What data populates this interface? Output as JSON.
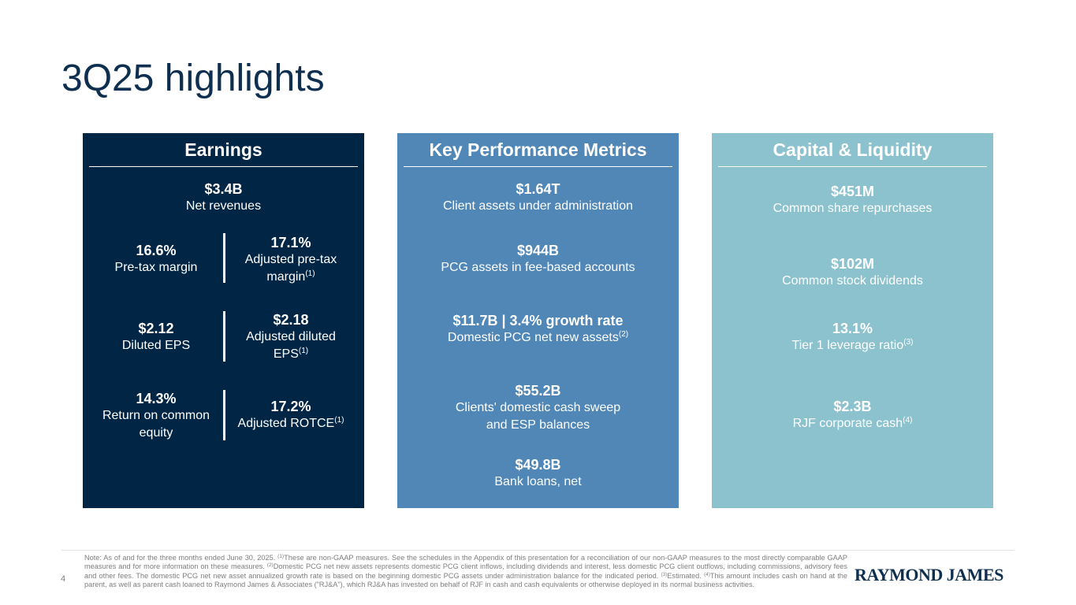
{
  "title": "3Q25 highlights",
  "colors": {
    "title": "#0e2f4f",
    "earnings_panel": "#012645",
    "kpm_panel": "#5087b6",
    "capital_panel": "#8bc2cd"
  },
  "earnings": {
    "heading": "Earnings",
    "net_revenues": {
      "value": "$3.4B",
      "label": "Net revenues"
    },
    "rows": [
      {
        "left": {
          "value": "16.6%",
          "label": "Pre-tax margin"
        },
        "right": {
          "value": "17.1%",
          "label": "Adjusted pre-tax margin",
          "sup": "(1)"
        }
      },
      {
        "left": {
          "value": "$2.12",
          "label": "Diluted EPS"
        },
        "right": {
          "value": "$2.18",
          "label": "Adjusted diluted EPS",
          "sup": "(1)"
        }
      },
      {
        "left": {
          "value": "14.3%",
          "label": "Return on common equity"
        },
        "right": {
          "value": "17.2%",
          "label": "Adjusted ROTCE",
          "sup": "(1)"
        }
      }
    ]
  },
  "kpm": {
    "heading": "Key Performance Metrics",
    "items": [
      {
        "value": "$1.64T",
        "label": "Client assets under administration",
        "sup": ""
      },
      {
        "value": "$944B",
        "label": "PCG assets in fee-based accounts",
        "sup": ""
      },
      {
        "value": "$11.7B | 3.4% growth rate",
        "label": "Domestic PCG net new assets",
        "sup": "(2)"
      },
      {
        "value": "$55.2B",
        "label_line1": "Clients' domestic cash sweep",
        "label_line2": "and ESP balances"
      },
      {
        "value": "$49.8B",
        "label": "Bank loans, net",
        "sup": ""
      }
    ]
  },
  "capital": {
    "heading": "Capital & Liquidity",
    "items": [
      {
        "value": "$451M",
        "label": "Common share repurchases",
        "sup": ""
      },
      {
        "value": "$102M",
        "label": "Common stock dividends",
        "sup": ""
      },
      {
        "value": "13.1%",
        "label": "Tier 1 leverage ratio",
        "sup": "(3)"
      },
      {
        "value": "$2.3B",
        "label": "RJF corporate cash",
        "sup": "(4)"
      }
    ]
  },
  "footer": {
    "page_number": "4",
    "note_parts": {
      "p0": "Note: As of and for the three months ended June 30, 2025. ",
      "s1": "(1)",
      "p1": "These are non-GAAP measures. See the schedules in the Appendix of this presentation for a reconciliation of our non-GAAP measures to the most directly comparable GAAP measures and for more information on these measures. ",
      "s2": "(2)",
      "p2": "Domestic PCG net new assets represents domestic PCG client inflows, including dividends and interest, less domestic PCG client outflows, including commissions, advisory fees and other fees. The domestic PCG net new asset annualized growth rate is based on the beginning domestic PCG assets under administration balance for the indicated period. ",
      "s3": "(3)",
      "p3": "Estimated. ",
      "s4": "(4)",
      "p4": "This amount includes cash on hand at the parent, as well as parent cash loaned to Raymond James & Associates (\"RJ&A\"), which RJ&A has invested on behalf of RJF in cash and cash equivalents or otherwise deployed in its normal business activities."
    },
    "logo_text": "RAYMOND JAMES"
  }
}
